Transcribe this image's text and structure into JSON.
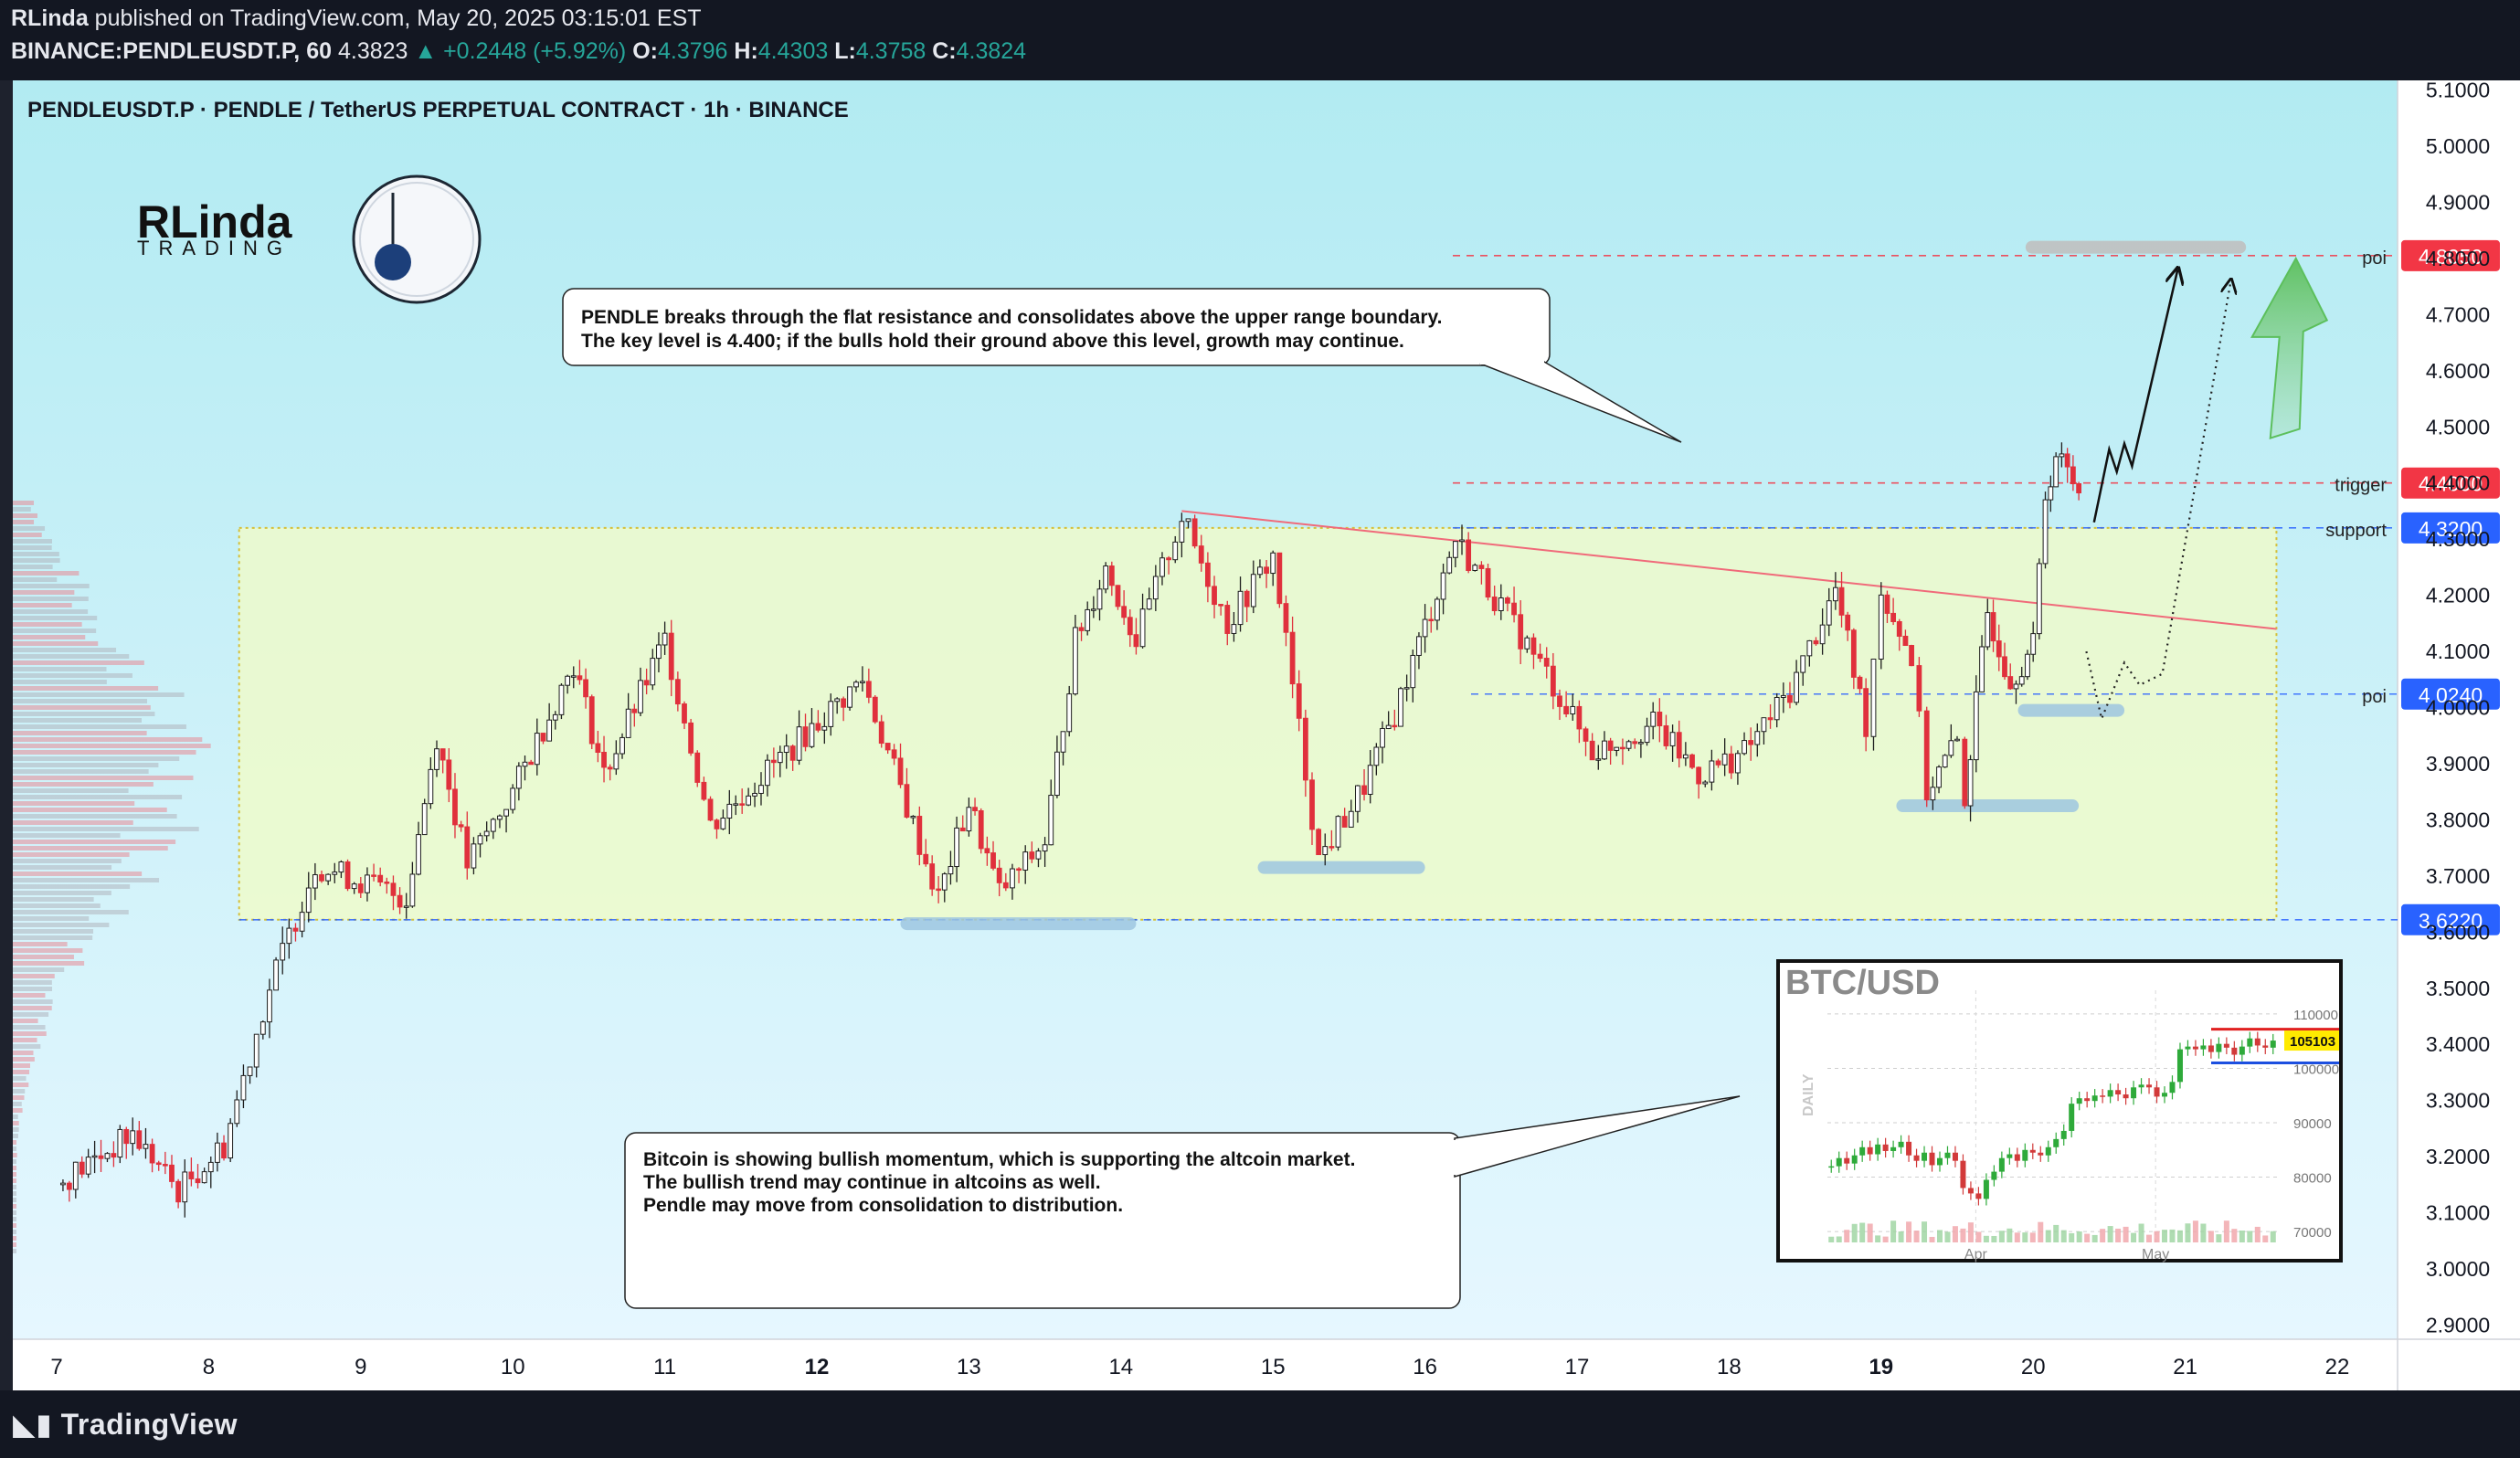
{
  "header": {
    "author": "RLinda",
    "published_text": "published on TradingView.com, May 20, 2025 03:15:01 EST",
    "symbol": "BINANCE:PENDLEUSDT.P, 60",
    "price": "4.3823",
    "change": "▲ +0.2448 (+5.92%)",
    "o_label": "O:",
    "o_value": "4.3796",
    "h_label": "H:",
    "h_value": "4.4303",
    "l_label": "L:",
    "l_value": "4.3758",
    "c_label": "C:",
    "c_value": "4.3824"
  },
  "chart_title": "PENDLEUSDT.P · PENDLE / TetherUS PERPETUAL CONTRACT · 1h · BINANCE",
  "logo": {
    "text_top": "RLinda",
    "text_bottom": "TRADING"
  },
  "annotations": {
    "top_note": [
      "PENDLE breaks through the flat resistance and consolidates above the upper range boundary.",
      "The key level is 4.400; if the bulls hold their ground above this level, growth may continue."
    ],
    "bottom_note": [
      "Bitcoin is showing bullish momentum, which is supporting the altcoin market.",
      "The bullish trend may continue in altcoins as well.",
      "Pendle may move from consolidation to distribution."
    ]
  },
  "footer": {
    "brand": "TradingView"
  },
  "colors": {
    "bg_top": "#b2ebf2",
    "bg_bottom": "#e3f6ff",
    "range_fill": "#f0fbc8",
    "up": "#1e1e1e",
    "down": "#e0303c",
    "red_level": "#f23645",
    "blue_level": "#2962ff",
    "poi_bar": "#9ec6e0"
  },
  "chart_data": {
    "type": "candlestick",
    "title": "PENDLEUSDT.P · PENDLE / TetherUS PERPETUAL CONTRACT · 1h · BINANCE",
    "x_ticks": [
      "7",
      "8",
      "9",
      "10",
      "11",
      "12",
      "13",
      "14",
      "15",
      "16",
      "17",
      "18",
      "19",
      "20",
      "21",
      "22"
    ],
    "y_ticks": [
      "5.1000",
      "5.0000",
      "4.9000",
      "4.8000",
      "4.7000",
      "4.6000",
      "4.5000",
      "4.4000",
      "4.3000",
      "4.2000",
      "4.1000",
      "4.0000",
      "3.9000",
      "3.8000",
      "3.7000",
      "3.6000",
      "3.5000",
      "3.4000",
      "3.3000",
      "3.2000",
      "3.1000",
      "3.0000",
      "2.9000"
    ],
    "ylim": [
      2.88,
      5.12
    ],
    "levels": [
      {
        "name": "poi",
        "value": 4.805,
        "label": "4.8050",
        "color": "red"
      },
      {
        "name": "trigger",
        "value": 4.4,
        "label": "4.4000",
        "color": "red"
      },
      {
        "name": "support",
        "value": 4.32,
        "label": "4.3200",
        "color": "blue"
      },
      {
        "name": "poi",
        "value": 4.024,
        "label": "4.0240",
        "color": "blue"
      },
      {
        "name": "",
        "value": 3.622,
        "label": "3.6220",
        "color": "blue"
      }
    ],
    "range_box": {
      "low": 3.622,
      "high": 4.32,
      "from_day": 8.2,
      "to_day": 21.6
    },
    "key_points": [
      {
        "day": 7.0,
        "price": 3.15
      },
      {
        "day": 7.5,
        "price": 3.24
      },
      {
        "day": 7.8,
        "price": 3.14
      },
      {
        "day": 8.1,
        "price": 3.22
      },
      {
        "day": 8.4,
        "price": 3.5
      },
      {
        "day": 8.7,
        "price": 3.72
      },
      {
        "day": 9.3,
        "price": 3.66
      },
      {
        "day": 9.5,
        "price": 3.95
      },
      {
        "day": 9.7,
        "price": 3.72
      },
      {
        "day": 10.0,
        "price": 3.85
      },
      {
        "day": 10.4,
        "price": 4.08
      },
      {
        "day": 10.6,
        "price": 3.88
      },
      {
        "day": 11.0,
        "price": 4.12
      },
      {
        "day": 11.3,
        "price": 3.79
      },
      {
        "day": 11.8,
        "price": 3.92
      },
      {
        "day": 12.3,
        "price": 4.05
      },
      {
        "day": 12.8,
        "price": 3.66
      },
      {
        "day": 13.0,
        "price": 3.83
      },
      {
        "day": 13.2,
        "price": 3.67
      },
      {
        "day": 13.5,
        "price": 3.76
      },
      {
        "day": 13.7,
        "price": 4.12
      },
      {
        "day": 13.9,
        "price": 4.25
      },
      {
        "day": 14.1,
        "price": 4.12
      },
      {
        "day": 14.4,
        "price": 4.34
      },
      {
        "day": 14.7,
        "price": 4.15
      },
      {
        "day": 15.0,
        "price": 4.27
      },
      {
        "day": 15.3,
        "price": 3.73
      },
      {
        "day": 15.6,
        "price": 3.86
      },
      {
        "day": 15.8,
        "price": 3.99
      },
      {
        "day": 16.2,
        "price": 4.3
      },
      {
        "day": 16.5,
        "price": 4.18
      },
      {
        "day": 16.8,
        "price": 4.06
      },
      {
        "day": 17.1,
        "price": 3.92
      },
      {
        "day": 17.5,
        "price": 3.97
      },
      {
        "day": 17.8,
        "price": 3.88
      },
      {
        "day": 18.1,
        "price": 3.92
      },
      {
        "day": 18.4,
        "price": 4.03
      },
      {
        "day": 18.7,
        "price": 4.21
      },
      {
        "day": 18.9,
        "price": 3.97
      },
      {
        "day": 19.0,
        "price": 4.21
      },
      {
        "day": 19.2,
        "price": 4.09
      },
      {
        "day": 19.3,
        "price": 3.85
      },
      {
        "day": 19.5,
        "price": 3.94
      },
      {
        "day": 19.55,
        "price": 3.84
      },
      {
        "day": 19.7,
        "price": 4.17
      },
      {
        "day": 19.85,
        "price": 4.05
      },
      {
        "day": 20.0,
        "price": 4.11
      },
      {
        "day": 20.08,
        "price": 4.38
      },
      {
        "day": 20.15,
        "price": 4.45
      },
      {
        "day": 20.3,
        "price": 4.39
      }
    ],
    "projection_solid": [
      {
        "day": 20.4,
        "price": 4.33
      },
      {
        "day": 20.5,
        "price": 4.46
      },
      {
        "day": 20.55,
        "price": 4.42
      },
      {
        "day": 20.6,
        "price": 4.47
      },
      {
        "day": 20.65,
        "price": 4.43
      },
      {
        "day": 20.95,
        "price": 4.78
      }
    ],
    "projection_dotted": [
      {
        "day": 20.35,
        "price": 4.1
      },
      {
        "day": 20.45,
        "price": 3.98
      },
      {
        "day": 20.6,
        "price": 4.08
      },
      {
        "day": 20.7,
        "price": 4.04
      },
      {
        "day": 20.85,
        "price": 4.06
      },
      {
        "day": 21.3,
        "price": 4.76
      }
    ],
    "trendline": {
      "from": {
        "day": 14.4,
        "price": 4.35
      },
      "to": {
        "day": 21.6,
        "price": 4.14
      }
    },
    "poi_zones": [
      {
        "day_from": 12.55,
        "day_to": 14.1,
        "price": 3.615
      },
      {
        "day_from": 14.9,
        "day_to": 16.0,
        "price": 3.715
      },
      {
        "day_from": 19.1,
        "day_to": 20.3,
        "price": 3.825
      },
      {
        "day_from": 19.9,
        "day_to": 20.6,
        "price": 3.995
      },
      {
        "day_from": 19.95,
        "day_to": 21.4,
        "price": 4.82
      }
    ],
    "inset": {
      "title": "BTC/USD",
      "timeframe": "DAILY",
      "y_ticks": [
        "110000",
        "100000",
        "90000",
        "80000",
        "70000"
      ],
      "x_ticks": [
        "Apr",
        "May"
      ],
      "last_price": "105103",
      "ylim": [
        68000,
        112000
      ],
      "closes": [
        82000,
        83500,
        82500,
        84000,
        85500,
        84200,
        86000,
        84800,
        85500,
        86500,
        84000,
        83000,
        84500,
        82200,
        83500,
        84500,
        83000,
        78000,
        77000,
        76000,
        79500,
        81000,
        83500,
        84200,
        83000,
        85000,
        84500,
        84000,
        85500,
        87000,
        88500,
        93500,
        94500,
        94000,
        95000,
        94800,
        96000,
        95200,
        94500,
        96500,
        97000,
        96500,
        94800,
        95500,
        97500,
        103500,
        104000,
        103500,
        104200,
        103000,
        104500,
        103800,
        102500,
        104000,
        105500,
        104200,
        103800,
        105103
      ]
    }
  }
}
